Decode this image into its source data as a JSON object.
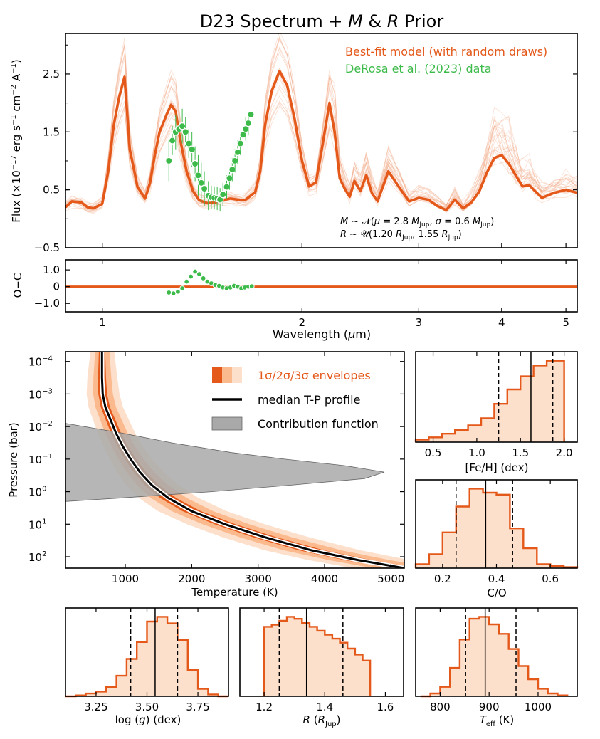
{
  "colors": {
    "model": "#e4581a",
    "draws": "#f0a47e",
    "data": "#3cba4a",
    "env3": "#fde0cb",
    "env2": "#fbb98e",
    "env1": "#e4581a",
    "fill": "#fde0cb",
    "contrib": "#a9a9a9"
  },
  "chart_data": [
    {
      "id": "spectrum",
      "type": "line",
      "title": "D23 Spectrum + M & R Prior",
      "title_parts": {
        "prefix": "D23 Spectrum + ",
        "m": "M",
        "amp": " & ",
        "r": "R",
        "suffix": " Prior"
      },
      "ylabel": "Flux (×10⁻¹⁷ erg s⁻¹ cm⁻² A⁻¹)",
      "ylim": [
        -0.5,
        3.2
      ],
      "xlim": [
        0.88,
        5.2
      ],
      "xscale": "log",
      "yticks": [
        -0.5,
        0.5,
        1.5,
        2.5
      ],
      "ytick_labels": [
        "−0.5",
        "0.5",
        "1.5",
        "2.5"
      ],
      "legend": [
        "Best-fit model (with random draws)",
        "DeRosa et al. (2023) data"
      ],
      "annotation": [
        "M ~ N(μ = 2.8 M_Jup, σ = 0.6 M_Jup)",
        "R ~ U(1.20 R_Jup, 1.55 R_Jup)"
      ],
      "model_x": [
        0.88,
        0.9,
        0.93,
        0.95,
        0.97,
        1.0,
        1.02,
        1.04,
        1.06,
        1.08,
        1.1,
        1.13,
        1.16,
        1.18,
        1.2,
        1.22,
        1.25,
        1.27,
        1.29,
        1.31,
        1.34,
        1.37,
        1.4,
        1.44,
        1.48,
        1.52,
        1.56,
        1.6,
        1.64,
        1.67,
        1.7,
        1.73,
        1.76,
        1.8,
        1.85,
        1.9,
        1.95,
        2.0,
        2.05,
        2.1,
        2.15,
        2.2,
        2.24,
        2.28,
        2.32,
        2.36,
        2.4,
        2.45,
        2.5,
        2.55,
        2.6,
        2.7,
        2.8,
        2.9,
        3.0,
        3.1,
        3.2,
        3.3,
        3.4,
        3.5,
        3.6,
        3.7,
        3.8,
        3.9,
        4.0,
        4.1,
        4.2,
        4.3,
        4.4,
        4.5,
        4.6,
        4.8,
        5.0,
        5.2
      ],
      "model_y": [
        0.2,
        0.3,
        0.28,
        0.2,
        0.18,
        0.26,
        0.8,
        1.6,
        2.1,
        2.45,
        1.2,
        0.55,
        0.35,
        0.62,
        1.1,
        1.5,
        1.8,
        1.97,
        1.85,
        1.38,
        0.82,
        0.48,
        0.32,
        0.27,
        0.28,
        0.32,
        0.35,
        0.33,
        0.32,
        0.39,
        0.46,
        0.82,
        1.62,
        2.2,
        2.55,
        2.3,
        1.72,
        1.0,
        0.56,
        0.63,
        1.3,
        2.0,
        1.5,
        0.7,
        0.52,
        0.38,
        0.65,
        0.48,
        0.75,
        0.44,
        0.3,
        0.82,
        0.55,
        0.3,
        0.36,
        0.33,
        0.22,
        0.15,
        0.33,
        0.18,
        0.28,
        0.47,
        0.8,
        1.05,
        1.1,
        0.95,
        0.75,
        0.56,
        0.58,
        0.47,
        0.36,
        0.45,
        0.5,
        0.45
      ],
      "data_points": [
        {
          "x": 1.26,
          "y": 1.0,
          "err": 0.35
        },
        {
          "x": 1.275,
          "y": 1.35,
          "err": 0.25
        },
        {
          "x": 1.29,
          "y": 1.5,
          "err": 0.3
        },
        {
          "x": 1.305,
          "y": 1.55,
          "err": 0.3
        },
        {
          "x": 1.32,
          "y": 1.6,
          "err": 0.3
        },
        {
          "x": 1.335,
          "y": 1.5,
          "err": 0.25
        },
        {
          "x": 1.35,
          "y": 1.3,
          "err": 0.25
        },
        {
          "x": 1.365,
          "y": 1.2,
          "err": 0.3
        },
        {
          "x": 1.38,
          "y": 0.95,
          "err": 0.3
        },
        {
          "x": 1.395,
          "y": 0.75,
          "err": 0.35
        },
        {
          "x": 1.41,
          "y": 0.62,
          "err": 0.35
        },
        {
          "x": 1.425,
          "y": 0.52,
          "err": 0.3
        },
        {
          "x": 1.445,
          "y": 0.4,
          "err": 0.25
        },
        {
          "x": 1.46,
          "y": 0.37,
          "err": 0.2
        },
        {
          "x": 1.475,
          "y": 0.36,
          "err": 0.2
        },
        {
          "x": 1.49,
          "y": 0.35,
          "err": 0.2
        },
        {
          "x": 1.505,
          "y": 0.33,
          "err": 0.2
        },
        {
          "x": 1.52,
          "y": 0.42,
          "err": 0.2
        },
        {
          "x": 1.54,
          "y": 0.55,
          "err": 0.2
        },
        {
          "x": 1.555,
          "y": 0.7,
          "err": 0.2
        },
        {
          "x": 1.57,
          "y": 0.85,
          "err": 0.2
        },
        {
          "x": 1.585,
          "y": 1.0,
          "err": 0.2
        },
        {
          "x": 1.6,
          "y": 1.15,
          "err": 0.2
        },
        {
          "x": 1.615,
          "y": 1.3,
          "err": 0.2
        },
        {
          "x": 1.63,
          "y": 1.45,
          "err": 0.2
        },
        {
          "x": 1.645,
          "y": 1.55,
          "err": 0.2
        },
        {
          "x": 1.66,
          "y": 1.65,
          "err": 0.2
        },
        {
          "x": 1.675,
          "y": 1.8,
          "err": 0.2
        }
      ]
    },
    {
      "id": "residuals",
      "type": "scatter",
      "ylabel": "O−C",
      "xlabel": "Wavelength (μm)",
      "ylim": [
        -1.5,
        1.6
      ],
      "yticks": [
        -1.0,
        0,
        1.0
      ],
      "ytick_labels": [
        "−1.0",
        "0",
        "1.0"
      ],
      "xticks": [
        1,
        2,
        3,
        4,
        5
      ],
      "xtick_labels": [
        "1",
        "2",
        "3",
        "4",
        "5"
      ],
      "points": [
        {
          "x": 1.26,
          "y": -0.35
        },
        {
          "x": 1.28,
          "y": -0.4
        },
        {
          "x": 1.3,
          "y": -0.3
        },
        {
          "x": 1.32,
          "y": -0.1
        },
        {
          "x": 1.34,
          "y": 0.3
        },
        {
          "x": 1.36,
          "y": 0.6
        },
        {
          "x": 1.38,
          "y": 0.9
        },
        {
          "x": 1.4,
          "y": 0.75
        },
        {
          "x": 1.42,
          "y": 0.5
        },
        {
          "x": 1.44,
          "y": 0.3
        },
        {
          "x": 1.46,
          "y": 0.2
        },
        {
          "x": 1.48,
          "y": 0.1
        },
        {
          "x": 1.5,
          "y": 0.05
        },
        {
          "x": 1.52,
          "y": -0.05
        },
        {
          "x": 1.54,
          "y": -0.1
        },
        {
          "x": 1.56,
          "y": -0.05
        },
        {
          "x": 1.58,
          "y": 0.05
        },
        {
          "x": 1.6,
          "y": 0.0
        },
        {
          "x": 1.62,
          "y": -0.1
        },
        {
          "x": 1.64,
          "y": -0.05
        },
        {
          "x": 1.66,
          "y": 0.0
        },
        {
          "x": 1.68,
          "y": 0.02
        }
      ]
    },
    {
      "id": "tp_profile",
      "type": "area",
      "xlabel": "Temperature (K)",
      "ylabel": "Pressure (bar)",
      "xlim": [
        100,
        5200
      ],
      "xticks": [
        1000,
        2000,
        3000,
        4000,
        5000
      ],
      "xtick_labels": [
        "1000",
        "2000",
        "3000",
        "4000",
        "5000"
      ],
      "ylim_log": [
        -4.3,
        2.35
      ],
      "ytick_exponents": [
        -4,
        -3,
        -2,
        -1,
        0,
        1,
        2
      ],
      "ytick_labels": [
        "10",
        "10",
        "10",
        "10",
        "10",
        "10",
        "10"
      ],
      "ytick_superscripts": [
        "−4",
        "−3",
        "−2",
        "−1",
        "0",
        "1",
        "2"
      ],
      "legend": [
        "1σ/2σ/3σ envelopes",
        "median T-P profile",
        "Contribution function"
      ],
      "median_logP": [
        -4.3,
        -3.5,
        -3.0,
        -2.6,
        -2.2,
        -1.8,
        -1.4,
        -1.0,
        -0.6,
        -0.2,
        0.2,
        0.6,
        1.0,
        1.4,
        1.8,
        2.1,
        2.35
      ],
      "median_T": [
        650,
        650,
        660,
        700,
        780,
        860,
        960,
        1080,
        1220,
        1400,
        1650,
        2000,
        2500,
        3100,
        3800,
        4500,
        5200
      ],
      "envelope_dT": [
        {
          "dlow": 60,
          "dhigh": 60
        },
        {
          "dlow": 130,
          "dhigh": 140
        },
        {
          "dlow": 220,
          "dhigh": 230
        }
      ],
      "envelope_scale": [
        0.8,
        1.0,
        1.1,
        1.15,
        1.2,
        1.25,
        1.3,
        1.4,
        1.55,
        1.75,
        2.0,
        2.3,
        2.6,
        2.9,
        3.2,
        3.4,
        3.5
      ],
      "contribution_logP": [
        -2.1,
        -1.8,
        -1.5,
        -1.2,
        -1.0,
        -0.8,
        -0.6,
        -0.4,
        -0.2,
        0.0,
        0.2,
        0.3
      ],
      "contribution_T": [
        100,
        950,
        1700,
        2600,
        3400,
        4300,
        4900,
        4600,
        3500,
        2300,
        900,
        100
      ]
    },
    {
      "id": "hist_feh",
      "type": "bar",
      "xlabel": "[Fe/H] (dex)",
      "xlim": [
        0.3,
        2.15
      ],
      "xticks": [
        0.5,
        1.0,
        1.5,
        2.0
      ],
      "xtick_labels": [
        "0.5",
        "1.0",
        "1.5",
        "2.0"
      ],
      "bin_edges": [
        0.3,
        0.45,
        0.6,
        0.75,
        0.9,
        1.05,
        1.2,
        1.35,
        1.5,
        1.65,
        1.8,
        2.0
      ],
      "counts": [
        2,
        4,
        7,
        10,
        14,
        20,
        32,
        44,
        55,
        64,
        68
      ],
      "quantiles": [
        1.25,
        1.62,
        1.87
      ]
    },
    {
      "id": "hist_co",
      "type": "bar",
      "xlabel": "C/O",
      "xlim": [
        0.1,
        0.7
      ],
      "xticks": [
        0.2,
        0.4,
        0.6
      ],
      "xtick_labels": [
        "0.2",
        "0.4",
        "0.6"
      ],
      "bin_edges": [
        0.1,
        0.15,
        0.2,
        0.25,
        0.3,
        0.35,
        0.4,
        0.45,
        0.5,
        0.55,
        0.6,
        0.65,
        0.7
      ],
      "counts": [
        4,
        14,
        36,
        62,
        80,
        76,
        74,
        40,
        20,
        4,
        2,
        1
      ],
      "quantiles": [
        0.25,
        0.36,
        0.46
      ]
    },
    {
      "id": "hist_logg",
      "type": "bar",
      "xlabel": "log (g) (dex)",
      "xlim": [
        3.1,
        3.9
      ],
      "xticks": [
        3.25,
        3.5,
        3.75
      ],
      "xtick_labels": [
        "3.25",
        "3.50",
        "3.75"
      ],
      "bin_edges": [
        3.1,
        3.15,
        3.2,
        3.25,
        3.3,
        3.35,
        3.4,
        3.45,
        3.5,
        3.55,
        3.6,
        3.65,
        3.7,
        3.75,
        3.8,
        3.85,
        3.9
      ],
      "counts": [
        0,
        1,
        3,
        5,
        10,
        22,
        40,
        58,
        80,
        85,
        78,
        60,
        28,
        8,
        2,
        0
      ],
      "quantiles": [
        3.42,
        3.54,
        3.65
      ]
    },
    {
      "id": "hist_radius",
      "type": "bar",
      "xlabel": "R (R_Jup)",
      "xlim": [
        1.12,
        1.66
      ],
      "xticks": [
        1.2,
        1.4,
        1.6
      ],
      "xtick_labels": [
        "1.2",
        "1.4",
        "1.6"
      ],
      "bin_edges": [
        1.2,
        1.225,
        1.25,
        1.275,
        1.3,
        1.325,
        1.35,
        1.375,
        1.4,
        1.425,
        1.45,
        1.475,
        1.5,
        1.525,
        1.55
      ],
      "counts": [
        70,
        72,
        76,
        80,
        78,
        74,
        70,
        66,
        62,
        58,
        54,
        48,
        42,
        36
      ],
      "quantiles": [
        1.25,
        1.34,
        1.46
      ]
    },
    {
      "id": "hist_teff",
      "type": "bar",
      "xlabel": "T_eff (K)",
      "xlim": [
        750,
        1080
      ],
      "xticks": [
        800,
        900,
        1000
      ],
      "xtick_labels": [
        "800",
        "900",
        "1000"
      ],
      "bin_edges": [
        760,
        780,
        800,
        820,
        840,
        860,
        880,
        900,
        920,
        940,
        960,
        980,
        1000,
        1020,
        1040,
        1060
      ],
      "counts": [
        0,
        3,
        10,
        30,
        60,
        82,
        84,
        76,
        66,
        50,
        32,
        18,
        8,
        3,
        1
      ],
      "quantiles": [
        852,
        892,
        955
      ]
    }
  ]
}
